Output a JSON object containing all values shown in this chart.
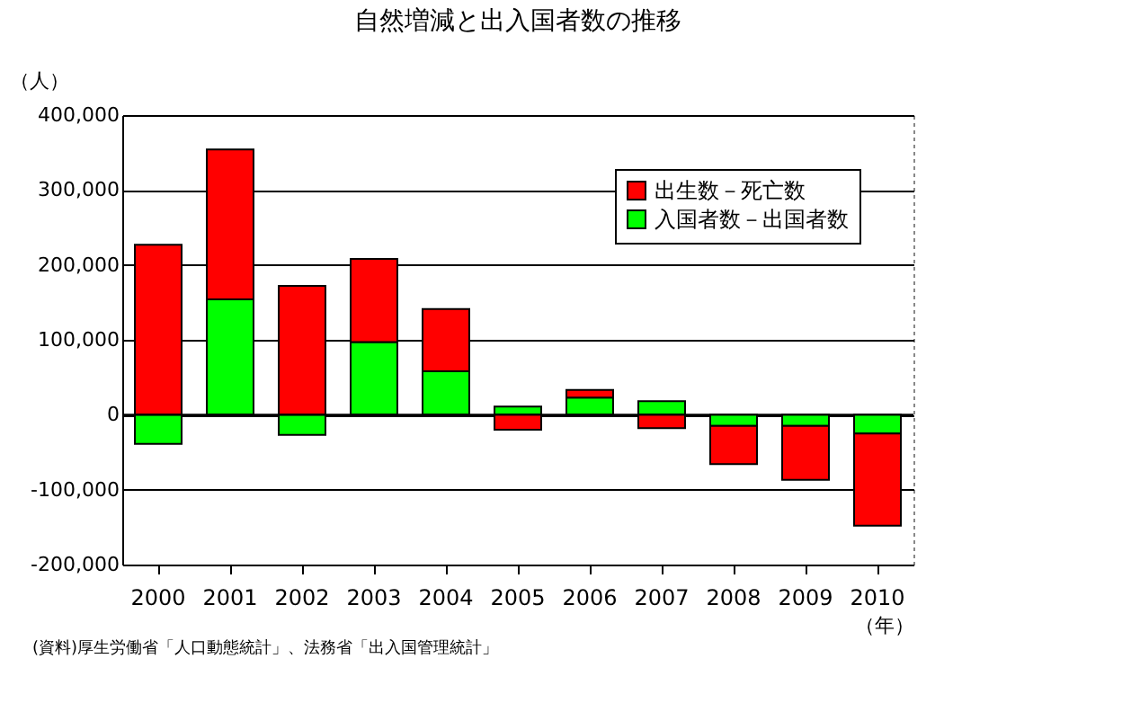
{
  "chart_data": {
    "type": "bar",
    "title": "自然増減と出入国者数の推移",
    "ylabel": "（人）",
    "xlabel": "（年）",
    "annotations": [
      "(資料)厚生労働省「人口動態統計」、法務省「出入国管理統計」"
    ],
    "categories": [
      "2000",
      "2001",
      "2002",
      "2003",
      "2004",
      "2005",
      "2006",
      "2007",
      "2008",
      "2009",
      "2010"
    ],
    "stacked": true,
    "series": [
      {
        "name": "入国者数－出国者数",
        "color": "#00ff00",
        "values": [
          -39000,
          154000,
          -27000,
          97000,
          58000,
          11000,
          23000,
          18000,
          -15000,
          -15000,
          -25000
        ]
      },
      {
        "name": "出生数－死亡数",
        "color": "#ff0000",
        "values": [
          227000,
          200000,
          172000,
          111000,
          83000,
          -20000,
          10000,
          -18000,
          -51000,
          -72000,
          -123000
        ]
      }
    ],
    "ylim": [
      -200000,
      400000
    ],
    "yticks": [
      {
        "value": -200000,
        "label": "-200,000"
      },
      {
        "value": -100000,
        "label": "-100,000"
      },
      0,
      {
        "value": 100000,
        "label": "100,000"
      },
      {
        "value": 200000,
        "label": "200,000"
      },
      {
        "value": 300000,
        "label": "300,000"
      },
      {
        "value": 400000,
        "label": "400,000"
      }
    ],
    "grid": "y",
    "legend": "top right"
  }
}
